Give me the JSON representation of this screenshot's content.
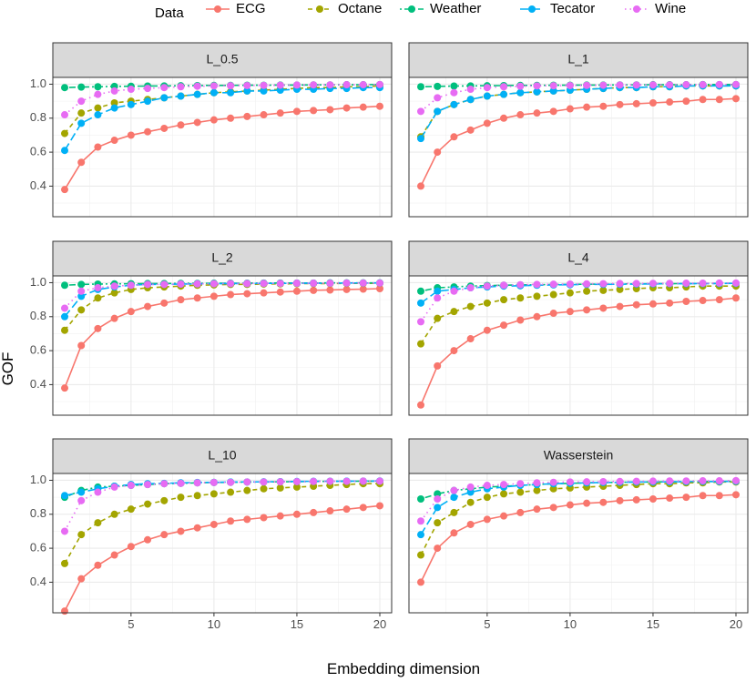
{
  "chart_data": {
    "type": "line",
    "ylabel": "GOF",
    "xlabel": "Embedding dimension",
    "legend": {
      "title": "Data",
      "position": "top",
      "entries": [
        "ECG",
        "Octane",
        "Weather",
        "Tecator",
        "Wine"
      ]
    },
    "x": [
      1,
      2,
      3,
      4,
      5,
      6,
      7,
      8,
      9,
      10,
      11,
      12,
      13,
      14,
      15,
      16,
      17,
      18,
      19,
      20
    ],
    "xlim": [
      1,
      20
    ],
    "ylim": [
      0.22,
      1.04
    ],
    "xticks": [
      5,
      10,
      15,
      20
    ],
    "xtick_labels": [
      "5",
      "10",
      "15",
      "20"
    ],
    "yticks": [
      0.4,
      0.6,
      0.8,
      1.0
    ],
    "ytick_labels": [
      "0.4",
      "0.6",
      "0.8",
      "1.0"
    ],
    "series_style": [
      {
        "name": "ECG",
        "color": "#F8766D",
        "dash": "solid"
      },
      {
        "name": "Octane",
        "color": "#A3A500",
        "dash": "dashed"
      },
      {
        "name": "Weather",
        "color": "#00BF7D",
        "dash": "dotdash"
      },
      {
        "name": "Tecator",
        "color": "#00B0F6",
        "dash": "longdash"
      },
      {
        "name": "Wine",
        "color": "#E76BF3",
        "dash": "dotted"
      }
    ],
    "panels": [
      {
        "title": "L_0.5",
        "series": [
          {
            "name": "ECG",
            "values": [
              0.38,
              0.54,
              0.63,
              0.67,
              0.7,
              0.72,
              0.74,
              0.76,
              0.775,
              0.79,
              0.8,
              0.81,
              0.82,
              0.83,
              0.84,
              0.845,
              0.85,
              0.86,
              0.865,
              0.87
            ]
          },
          {
            "name": "Octane",
            "values": [
              0.71,
              0.83,
              0.86,
              0.89,
              0.9,
              0.91,
              0.92,
              0.93,
              0.94,
              0.95,
              0.955,
              0.96,
              0.965,
              0.97,
              0.975,
              0.98,
              0.98,
              0.985,
              0.985,
              0.99
            ]
          },
          {
            "name": "Weather",
            "values": [
              0.98,
              0.983,
              0.985,
              0.987,
              0.988,
              0.989,
              0.99,
              0.991,
              0.992,
              0.993,
              0.993,
              0.994,
              0.994,
              0.995,
              0.995,
              0.996,
              0.996,
              0.997,
              0.997,
              0.998
            ]
          },
          {
            "name": "Tecator",
            "values": [
              0.61,
              0.77,
              0.82,
              0.86,
              0.88,
              0.9,
              0.92,
              0.93,
              0.94,
              0.95,
              0.95,
              0.96,
              0.96,
              0.965,
              0.97,
              0.97,
              0.975,
              0.975,
              0.98,
              0.98
            ]
          },
          {
            "name": "Wine",
            "values": [
              0.82,
              0.9,
              0.94,
              0.96,
              0.97,
              0.975,
              0.98,
              0.985,
              0.988,
              0.99,
              0.991,
              0.992,
              0.993,
              0.994,
              0.995,
              0.996,
              0.996,
              0.997,
              0.997,
              0.998
            ]
          }
        ]
      },
      {
        "title": "L_1",
        "series": [
          {
            "name": "ECG",
            "values": [
              0.4,
              0.6,
              0.69,
              0.73,
              0.77,
              0.8,
              0.82,
              0.83,
              0.84,
              0.855,
              0.865,
              0.87,
              0.88,
              0.885,
              0.89,
              0.895,
              0.9,
              0.91,
              0.91,
              0.915
            ]
          },
          {
            "name": "Octane",
            "values": [
              0.69,
              0.84,
              0.88,
              0.91,
              0.93,
              0.94,
              0.95,
              0.955,
              0.96,
              0.965,
              0.97,
              0.975,
              0.98,
              0.98,
              0.985,
              0.985,
              0.99,
              0.99,
              0.99,
              0.99
            ]
          },
          {
            "name": "Weather",
            "values": [
              0.985,
              0.987,
              0.989,
              0.99,
              0.991,
              0.992,
              0.993,
              0.993,
              0.994,
              0.994,
              0.995,
              0.995,
              0.996,
              0.996,
              0.997,
              0.997,
              0.997,
              0.998,
              0.998,
              0.998
            ]
          },
          {
            "name": "Tecator",
            "values": [
              0.68,
              0.84,
              0.88,
              0.91,
              0.93,
              0.94,
              0.95,
              0.955,
              0.96,
              0.965,
              0.97,
              0.975,
              0.98,
              0.98,
              0.985,
              0.985,
              0.99,
              0.99,
              0.99,
              0.99
            ]
          },
          {
            "name": "Wine",
            "values": [
              0.84,
              0.92,
              0.95,
              0.97,
              0.98,
              0.985,
              0.988,
              0.99,
              0.991,
              0.992,
              0.993,
              0.994,
              0.995,
              0.995,
              0.996,
              0.996,
              0.997,
              0.997,
              0.998,
              0.998
            ]
          }
        ]
      },
      {
        "title": "L_2",
        "series": [
          {
            "name": "ECG",
            "values": [
              0.38,
              0.63,
              0.73,
              0.79,
              0.83,
              0.86,
              0.88,
              0.9,
              0.91,
              0.92,
              0.93,
              0.935,
              0.94,
              0.945,
              0.95,
              0.955,
              0.957,
              0.96,
              0.962,
              0.965
            ]
          },
          {
            "name": "Octane",
            "values": [
              0.72,
              0.84,
              0.91,
              0.94,
              0.96,
              0.97,
              0.975,
              0.98,
              0.985,
              0.987,
              0.99,
              0.99,
              0.992,
              0.993,
              0.994,
              0.995,
              0.995,
              0.996,
              0.996,
              0.997
            ]
          },
          {
            "name": "Weather",
            "values": [
              0.985,
              0.99,
              0.992,
              0.993,
              0.994,
              0.995,
              0.995,
              0.996,
              0.996,
              0.997,
              0.997,
              0.997,
              0.998,
              0.998,
              0.998,
              0.998,
              0.999,
              0.999,
              0.999,
              0.999
            ]
          },
          {
            "name": "Tecator",
            "values": [
              0.8,
              0.92,
              0.96,
              0.975,
              0.985,
              0.99,
              0.99,
              0.992,
              0.993,
              0.994,
              0.995,
              0.995,
              0.996,
              0.996,
              0.997,
              0.997,
              0.997,
              0.998,
              0.998,
              0.998
            ]
          },
          {
            "name": "Wine",
            "values": [
              0.85,
              0.95,
              0.97,
              0.98,
              0.985,
              0.99,
              0.99,
              0.992,
              0.993,
              0.994,
              0.995,
              0.995,
              0.996,
              0.996,
              0.997,
              0.997,
              0.997,
              0.998,
              0.998,
              0.998
            ]
          }
        ]
      },
      {
        "title": "L_4",
        "series": [
          {
            "name": "ECG",
            "values": [
              0.28,
              0.51,
              0.6,
              0.67,
              0.72,
              0.75,
              0.78,
              0.8,
              0.82,
              0.83,
              0.84,
              0.85,
              0.86,
              0.87,
              0.875,
              0.88,
              0.89,
              0.895,
              0.9,
              0.91
            ]
          },
          {
            "name": "Octane",
            "values": [
              0.64,
              0.79,
              0.83,
              0.86,
              0.88,
              0.9,
              0.91,
              0.92,
              0.93,
              0.94,
              0.95,
              0.955,
              0.96,
              0.965,
              0.97,
              0.97,
              0.975,
              0.98,
              0.98,
              0.98
            ]
          },
          {
            "name": "Weather",
            "values": [
              0.95,
              0.97,
              0.975,
              0.98,
              0.983,
              0.985,
              0.987,
              0.988,
              0.989,
              0.99,
              0.991,
              0.992,
              0.993,
              0.993,
              0.994,
              0.994,
              0.995,
              0.995,
              0.996,
              0.996
            ]
          },
          {
            "name": "Tecator",
            "values": [
              0.88,
              0.95,
              0.96,
              0.97,
              0.975,
              0.98,
              0.982,
              0.985,
              0.987,
              0.988,
              0.99,
              0.99,
              0.991,
              0.992,
              0.993,
              0.994,
              0.994,
              0.995,
              0.995,
              0.996
            ]
          },
          {
            "name": "Wine",
            "values": [
              0.77,
              0.91,
              0.95,
              0.97,
              0.98,
              0.985,
              0.988,
              0.99,
              0.991,
              0.992,
              0.993,
              0.994,
              0.995,
              0.995,
              0.996,
              0.996,
              0.997,
              0.997,
              0.998,
              0.998
            ]
          }
        ]
      },
      {
        "title": "L_10",
        "series": [
          {
            "name": "ECG",
            "values": [
              0.23,
              0.42,
              0.5,
              0.56,
              0.61,
              0.65,
              0.68,
              0.7,
              0.72,
              0.74,
              0.76,
              0.77,
              0.78,
              0.79,
              0.8,
              0.81,
              0.82,
              0.83,
              0.84,
              0.85
            ]
          },
          {
            "name": "Octane",
            "values": [
              0.51,
              0.68,
              0.75,
              0.8,
              0.83,
              0.86,
              0.88,
              0.9,
              0.91,
              0.92,
              0.93,
              0.94,
              0.95,
              0.955,
              0.96,
              0.965,
              0.97,
              0.975,
              0.98,
              0.98
            ]
          },
          {
            "name": "Weather",
            "values": [
              0.9,
              0.94,
              0.96,
              0.965,
              0.97,
              0.975,
              0.98,
              0.982,
              0.985,
              0.987,
              0.988,
              0.99,
              0.99,
              0.991,
              0.992,
              0.993,
              0.994,
              0.994,
              0.995,
              0.995
            ]
          },
          {
            "name": "Tecator",
            "values": [
              0.91,
              0.93,
              0.95,
              0.965,
              0.975,
              0.98,
              0.982,
              0.985,
              0.987,
              0.988,
              0.99,
              0.99,
              0.991,
              0.992,
              0.993,
              0.994,
              0.994,
              0.995,
              0.995,
              0.996
            ]
          },
          {
            "name": "Wine",
            "values": [
              0.7,
              0.88,
              0.93,
              0.96,
              0.97,
              0.975,
              0.98,
              0.982,
              0.985,
              0.987,
              0.988,
              0.99,
              0.99,
              0.991,
              0.992,
              0.993,
              0.994,
              0.994,
              0.995,
              0.995
            ]
          }
        ]
      },
      {
        "title": "Wasserstein",
        "series": [
          {
            "name": "ECG",
            "values": [
              0.4,
              0.6,
              0.69,
              0.74,
              0.77,
              0.79,
              0.81,
              0.83,
              0.84,
              0.855,
              0.865,
              0.87,
              0.88,
              0.885,
              0.89,
              0.895,
              0.9,
              0.91,
              0.91,
              0.915
            ]
          },
          {
            "name": "Octane",
            "values": [
              0.56,
              0.75,
              0.81,
              0.87,
              0.9,
              0.92,
              0.93,
              0.94,
              0.95,
              0.955,
              0.96,
              0.965,
              0.97,
              0.975,
              0.98,
              0.98,
              0.985,
              0.985,
              0.99,
              0.99
            ]
          },
          {
            "name": "Weather",
            "values": [
              0.89,
              0.92,
              0.94,
              0.95,
              0.96,
              0.965,
              0.97,
              0.975,
              0.98,
              0.982,
              0.985,
              0.987,
              0.988,
              0.99,
              0.99,
              0.991,
              0.992,
              0.993,
              0.993,
              0.994
            ]
          },
          {
            "name": "Tecator",
            "values": [
              0.68,
              0.84,
              0.9,
              0.93,
              0.95,
              0.96,
              0.97,
              0.975,
              0.98,
              0.982,
              0.985,
              0.987,
              0.988,
              0.99,
              0.99,
              0.991,
              0.992,
              0.993,
              0.993,
              0.994
            ]
          },
          {
            "name": "Wine",
            "values": [
              0.76,
              0.89,
              0.94,
              0.96,
              0.97,
              0.975,
              0.98,
              0.985,
              0.988,
              0.99,
              0.991,
              0.992,
              0.993,
              0.994,
              0.995,
              0.996,
              0.996,
              0.997,
              0.997,
              0.998
            ]
          }
        ]
      }
    ]
  }
}
